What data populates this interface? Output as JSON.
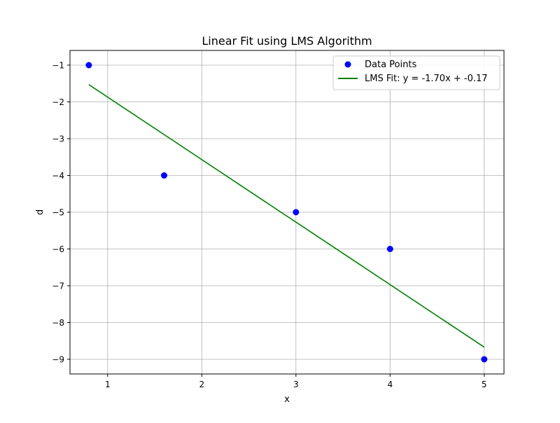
{
  "chart_data": {
    "type": "scatter",
    "title": "Linear Fit using LMS Algorithm",
    "xlabel": "x",
    "ylabel": "d",
    "xlim": [
      0.6,
      5.21
    ],
    "ylim": [
      -9.4,
      -0.6
    ],
    "x_ticks": [
      1,
      2,
      3,
      4,
      5
    ],
    "y_ticks": [
      -1,
      -2,
      -3,
      -4,
      -5,
      -6,
      -7,
      -8,
      -9
    ],
    "grid": true,
    "legend_position": "top-right",
    "series": [
      {
        "name": "Data Points",
        "kind": "scatter",
        "color": "#0000ff",
        "x": [
          0.8,
          1.6,
          3.0,
          4.0,
          5.0
        ],
        "y": [
          -1,
          -4,
          -5,
          -6,
          -9
        ]
      },
      {
        "name": "LMS Fit: y = -1.70x + -0.17",
        "kind": "line",
        "color": "#008000",
        "x": [
          0.8,
          5.0
        ],
        "y": [
          -1.53,
          -8.67
        ]
      }
    ]
  }
}
